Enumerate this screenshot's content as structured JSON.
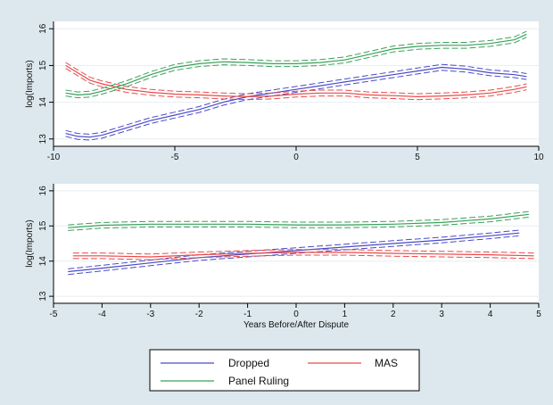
{
  "chart_data": [
    {
      "type": "line",
      "xlabel": "",
      "ylabel": "log(Imports)",
      "xlim": [
        -10,
        10
      ],
      "ylim": [
        12.8,
        16.2
      ],
      "xticks": [
        "-10",
        "-5",
        "0",
        "5",
        "10"
      ],
      "yticks": [
        "13",
        "14",
        "15",
        "16"
      ],
      "grid": true,
      "band_width": 0.08,
      "series": [
        {
          "name": "Dropped",
          "color": "#4a4ac8",
          "x": [
            -9.5,
            -9,
            -8.5,
            -8,
            -7,
            -6,
            -5,
            -4,
            -3,
            -2,
            -1,
            0,
            1,
            2,
            3,
            4,
            5,
            6,
            7,
            8,
            9,
            9.5
          ],
          "y": [
            13.15,
            13.07,
            13.05,
            13.1,
            13.3,
            13.5,
            13.65,
            13.8,
            14.0,
            14.15,
            14.25,
            14.35,
            14.45,
            14.55,
            14.65,
            14.75,
            14.85,
            14.95,
            14.9,
            14.8,
            14.75,
            14.7
          ]
        },
        {
          "name": "MAS",
          "color": "#e84a4a",
          "x": [
            -9.5,
            -9,
            -8.5,
            -8,
            -7,
            -6,
            -5,
            -4,
            -3,
            -2,
            -1,
            0,
            1,
            2,
            3,
            4,
            5,
            6,
            7,
            8,
            9,
            9.5
          ],
          "y": [
            15.0,
            14.8,
            14.6,
            14.5,
            14.35,
            14.27,
            14.22,
            14.2,
            14.17,
            14.15,
            14.17,
            14.22,
            14.25,
            14.25,
            14.2,
            14.18,
            14.15,
            14.17,
            14.2,
            14.25,
            14.35,
            14.42
          ]
        },
        {
          "name": "Panel Ruling",
          "color": "#3aa05a",
          "x": [
            -9.5,
            -9,
            -8.5,
            -8,
            -7,
            -6,
            -5,
            -4,
            -3,
            -2,
            -1,
            0,
            1,
            2,
            3,
            4,
            5,
            6,
            7,
            8,
            9,
            9.5
          ],
          "y": [
            14.25,
            14.2,
            14.22,
            14.3,
            14.5,
            14.75,
            14.95,
            15.05,
            15.1,
            15.08,
            15.05,
            15.05,
            15.08,
            15.15,
            15.3,
            15.45,
            15.52,
            15.55,
            15.55,
            15.6,
            15.7,
            15.85
          ]
        }
      ]
    },
    {
      "type": "line",
      "xlabel": "Years Before/After Dispute",
      "ylabel": "log(Imports)",
      "xlim": [
        -5,
        5
      ],
      "ylim": [
        12.8,
        16.2
      ],
      "xticks": [
        "-5",
        "-4",
        "-3",
        "-2",
        "-1",
        "0",
        "1",
        "2",
        "3",
        "4",
        "5"
      ],
      "yticks": [
        "13",
        "14",
        "15",
        "16"
      ],
      "grid": true,
      "band_width": 0.08,
      "series": [
        {
          "name": "Dropped",
          "color": "#4a4ac8",
          "x": [
            -4.7,
            -4,
            -3,
            -2,
            -1,
            0,
            1,
            2,
            3,
            4,
            4.6
          ],
          "y": [
            13.7,
            13.8,
            13.95,
            14.1,
            14.2,
            14.3,
            14.4,
            14.5,
            14.6,
            14.72,
            14.8
          ]
        },
        {
          "name": "MAS",
          "color": "#e84a4a",
          "x": [
            -4.6,
            -4,
            -3,
            -2,
            -1,
            0,
            1,
            2,
            3,
            4,
            4.9
          ],
          "y": [
            14.15,
            14.15,
            14.12,
            14.18,
            14.22,
            14.25,
            14.25,
            14.22,
            14.2,
            14.18,
            14.15
          ]
        },
        {
          "name": "Panel Ruling",
          "color": "#3aa05a",
          "x": [
            -4.7,
            -4,
            -3,
            -2,
            -1,
            0,
            1,
            2,
            3,
            4,
            4.8
          ],
          "y": [
            14.95,
            15.02,
            15.05,
            15.05,
            15.05,
            15.03,
            15.03,
            15.05,
            15.1,
            15.2,
            15.33
          ]
        }
      ]
    }
  ],
  "legend": {
    "placement": "bottom-center",
    "items": [
      {
        "label": "Dropped",
        "color": "#4a4ac8"
      },
      {
        "label": "MAS",
        "color": "#e84a4a"
      },
      {
        "label": "Panel Ruling",
        "color": "#3aa05a"
      }
    ]
  }
}
